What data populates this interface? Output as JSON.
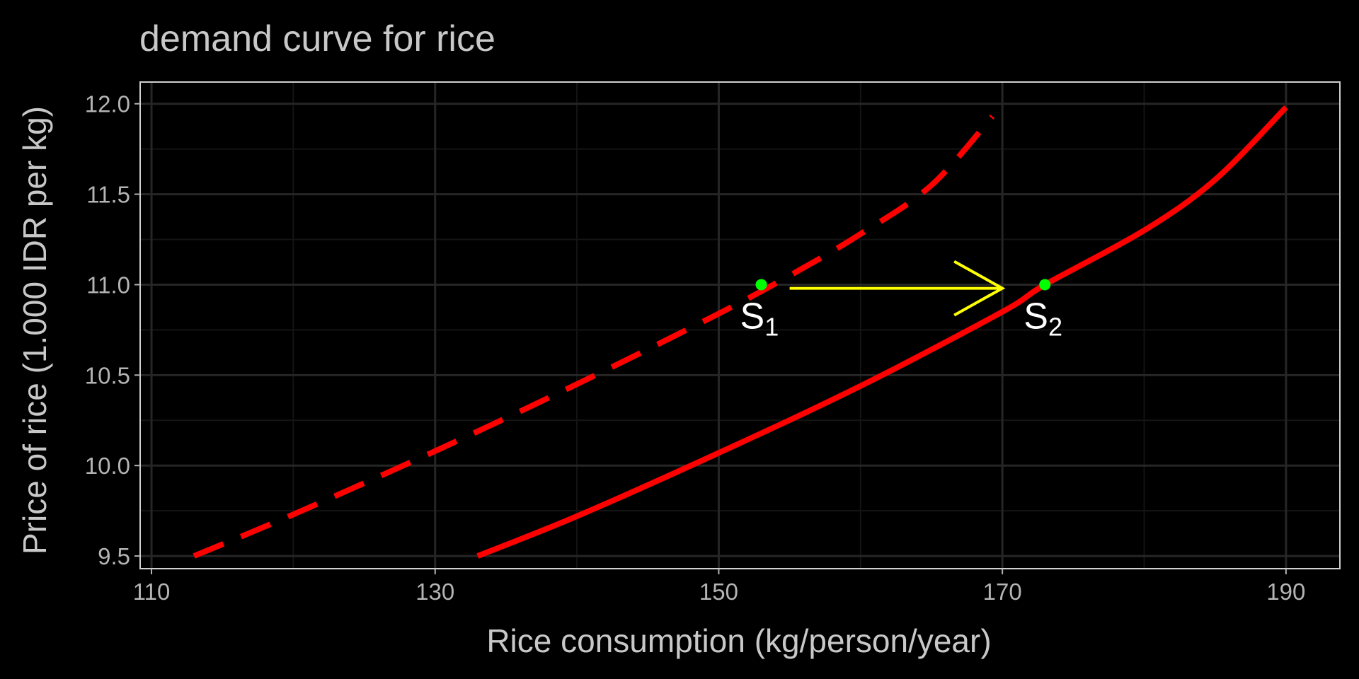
{
  "chart_data": {
    "type": "line",
    "title": "demand curve for rice",
    "xlabel": "Rice consumption (kg/person/year)",
    "ylabel": "Price of rice (1.000 IDR per kg)",
    "xlim": [
      109.2,
      193.8
    ],
    "ylim": [
      9.43,
      12.12
    ],
    "xticks": [
      110,
      130,
      150,
      170,
      190
    ],
    "xtick_labels": [
      "110",
      "130",
      "150",
      "170",
      "190"
    ],
    "yticks": [
      9.5,
      10.0,
      10.5,
      11.0,
      11.5,
      12.0
    ],
    "ytick_labels": [
      "9.5",
      "10.0",
      "10.5",
      "11.0",
      "11.5",
      "12.0"
    ],
    "grid": true,
    "series": [
      {
        "style": "dashed",
        "color": "#ff0000",
        "points": [
          [
            113,
            9.5
          ],
          [
            120,
            9.73
          ],
          [
            130,
            10.08
          ],
          [
            140,
            10.45
          ],
          [
            150,
            10.84
          ],
          [
            155,
            11.05
          ],
          [
            160,
            11.28
          ],
          [
            165,
            11.55
          ],
          [
            169.3,
            11.93
          ]
        ]
      },
      {
        "style": "solid",
        "color": "#ff0000",
        "points": [
          [
            133,
            9.5
          ],
          [
            140,
            9.72
          ],
          [
            150,
            10.07
          ],
          [
            160,
            10.44
          ],
          [
            170,
            10.85
          ],
          [
            173,
            11.0
          ],
          [
            180,
            11.3
          ],
          [
            185,
            11.58
          ],
          [
            190,
            11.98
          ]
        ]
      }
    ],
    "points": [
      {
        "label_main": "S",
        "label_sub": "1",
        "x": 153,
        "y": 11.0,
        "color": "#00ff00"
      },
      {
        "label_main": "S",
        "label_sub": "2",
        "x": 173,
        "y": 11.0,
        "color": "#00ff00"
      }
    ],
    "arrow": {
      "x_start": 155,
      "x_end": 170,
      "y": 10.98,
      "color": "#ffff00"
    },
    "colors": {
      "background": "#000000",
      "panel_border": "#d0d0d0",
      "grid_major": "#262626",
      "grid_minor": "#141414"
    }
  }
}
